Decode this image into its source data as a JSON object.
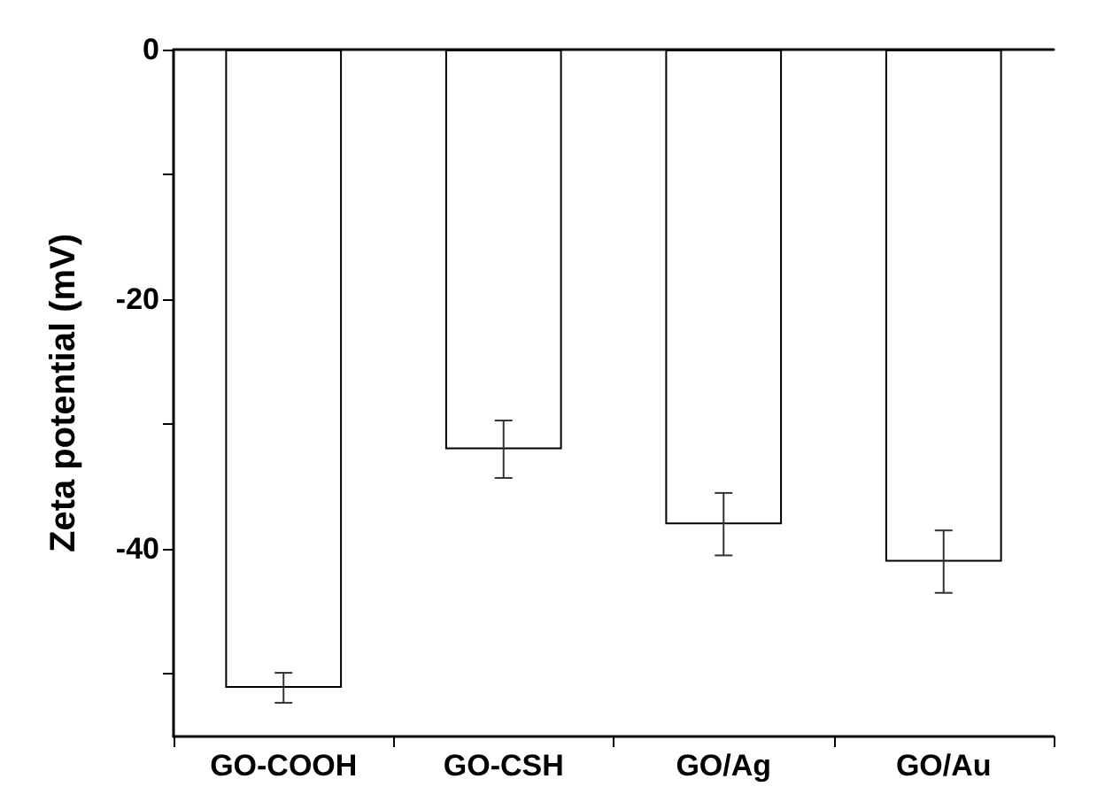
{
  "chart_data": {
    "type": "bar",
    "ylabel": "Zeta potential (mV)",
    "categories": [
      "GO-COOH",
      "GO-CSH",
      "GO/Ag",
      "GO/Au"
    ],
    "values": [
      -51.1,
      -32,
      -38,
      -41
    ],
    "errors": [
      1.2,
      2.3,
      2.5,
      2.5
    ],
    "color": "#ffffff",
    "ylim": [
      -55,
      0
    ],
    "yticks": [
      {
        "value": -50,
        "label": null
      },
      -40,
      {
        "value": -30,
        "label": null
      },
      -20,
      {
        "value": -10,
        "label": null
      },
      0
    ]
  }
}
